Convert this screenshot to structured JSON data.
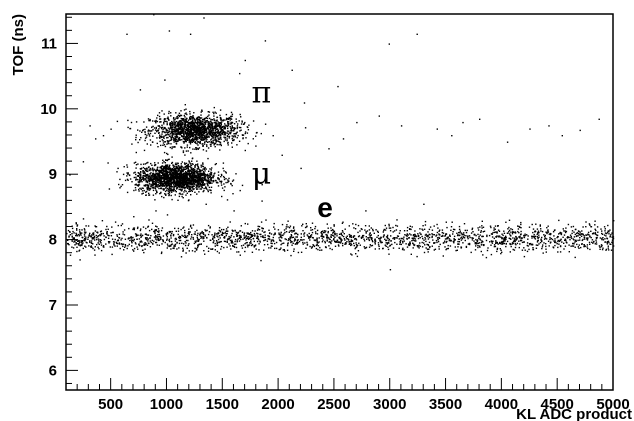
{
  "chart_data": {
    "type": "scatter",
    "title": "",
    "xlabel": "KL ADC product",
    "ylabel": "TOF (ns)",
    "xlim": [
      100,
      5000
    ],
    "ylim": [
      5.7,
      11.45
    ],
    "x_ticks": [
      500,
      1000,
      1500,
      2000,
      2500,
      3000,
      3500,
      4000,
      4500,
      5000
    ],
    "y_ticks": [
      6,
      7,
      8,
      9,
      10,
      11
    ],
    "grid": false,
    "legend": "none",
    "marker_color": "#000000",
    "annotations": [
      {
        "text": "π",
        "x": 1850,
        "y": 10.25
      },
      {
        "text": "μ",
        "x": 1850,
        "y": 9.0
      },
      {
        "text": "e",
        "x": 2420,
        "y": 8.5
      }
    ],
    "clusters": [
      {
        "name": "pion",
        "x_center": 1250,
        "x_spread": 200,
        "y_center": 9.68,
        "y_spread": 0.12,
        "count": 1500
      },
      {
        "name": "muon",
        "x_center": 1080,
        "x_spread": 180,
        "y_center": 8.95,
        "y_spread": 0.11,
        "count": 1800
      },
      {
        "name": "electron",
        "x_range": [
          100,
          5000
        ],
        "y_center": 8.03,
        "y_spread": 0.1,
        "count": 2200
      }
    ],
    "points": [
      [
        880,
        11.45
      ],
      [
        1330,
        11.4
      ],
      [
        1020,
        11.2
      ],
      [
        1210,
        11.15
      ],
      [
        640,
        11.15
      ],
      [
        1880,
        11.05
      ],
      [
        1700,
        10.75
      ],
      [
        2120,
        10.6
      ],
      [
        1650,
        10.55
      ],
      [
        2530,
        10.35
      ],
      [
        2230,
        10.1
      ],
      [
        3240,
        11.15
      ],
      [
        2990,
        11.0
      ],
      [
        980,
        10.45
      ],
      [
        760,
        10.3
      ],
      [
        2700,
        9.8
      ],
      [
        3100,
        9.75
      ],
      [
        3800,
        9.85
      ],
      [
        4250,
        9.7
      ],
      [
        4870,
        9.85
      ],
      [
        4540,
        9.6
      ],
      [
        3420,
        9.7
      ],
      [
        2580,
        9.55
      ],
      [
        1950,
        9.6
      ],
      [
        2240,
        9.72
      ],
      [
        2900,
        9.9
      ],
      [
        3550,
        9.6
      ],
      [
        4050,
        9.5
      ],
      [
        4700,
        9.68
      ],
      [
        4420,
        9.75
      ],
      [
        310,
        9.75
      ],
      [
        360,
        9.55
      ],
      [
        430,
        9.6
      ],
      [
        250,
        9.2
      ],
      [
        560,
        9.1
      ],
      [
        600,
        8.85
      ],
      [
        2030,
        9.3
      ],
      [
        2200,
        9.1
      ],
      [
        2450,
        9.4
      ],
      [
        3650,
        9.8
      ],
      [
        420,
        8.3
      ],
      [
        350,
        7.85
      ],
      [
        220,
        7.7
      ],
      [
        3000,
        7.55
      ],
      [
        4200,
        7.75
      ],
      [
        1350,
        8.55
      ],
      [
        1600,
        8.45
      ],
      [
        900,
        8.45
      ],
      [
        1850,
        8.6
      ],
      [
        3300,
        8.55
      ],
      [
        2780,
        8.45
      ],
      [
        150,
        8.05
      ],
      [
        690,
        8.0
      ],
      [
        130,
        9.0
      ],
      [
        5000,
        8.3
      ]
    ]
  }
}
